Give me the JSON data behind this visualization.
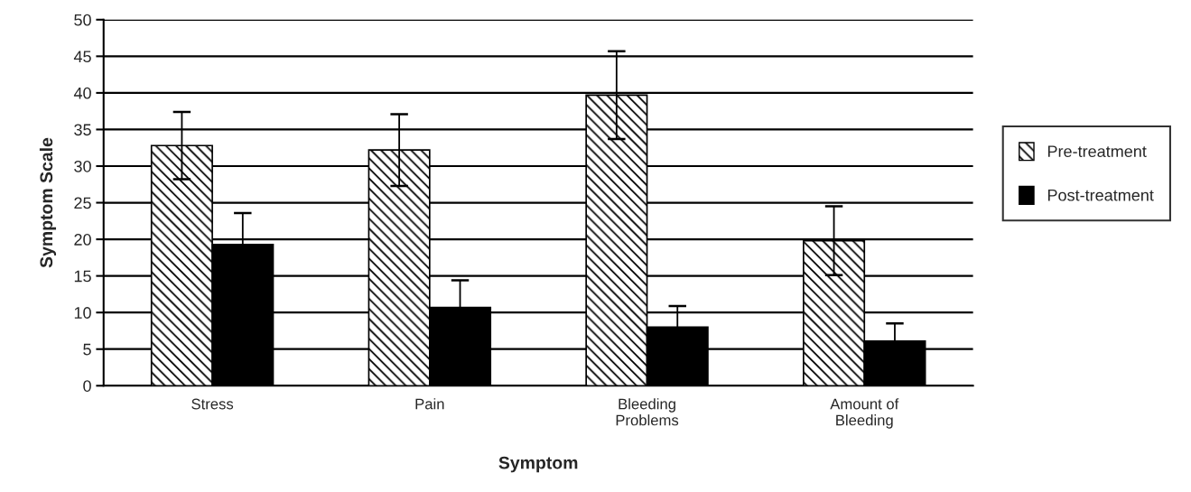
{
  "chart_data": {
    "type": "bar",
    "xlabel": "Symptom",
    "ylabel": "Symptom Scale",
    "categories": [
      "Stress",
      "Pain",
      "Bleeding\nProblems",
      "Amount of\nBleeding"
    ],
    "series": [
      {
        "name": "Pre-treatment",
        "color": "#000000",
        "values": [
          32.8,
          32.2,
          39.7,
          19.8
        ],
        "errors": [
          4.6,
          4.9,
          6.0,
          4.7
        ]
      },
      {
        "name": "Post-treatment",
        "color": "#000000",
        "values": [
          19.3,
          10.7,
          8.0,
          6.1
        ],
        "errors": [
          4.3,
          3.7,
          2.9,
          2.4
        ]
      }
    ],
    "ylim": [
      0,
      50
    ],
    "yticks": [
      0,
      5,
      10,
      15,
      20,
      25,
      30,
      35,
      40,
      45,
      50
    ],
    "grid": "y",
    "legend": "right"
  }
}
